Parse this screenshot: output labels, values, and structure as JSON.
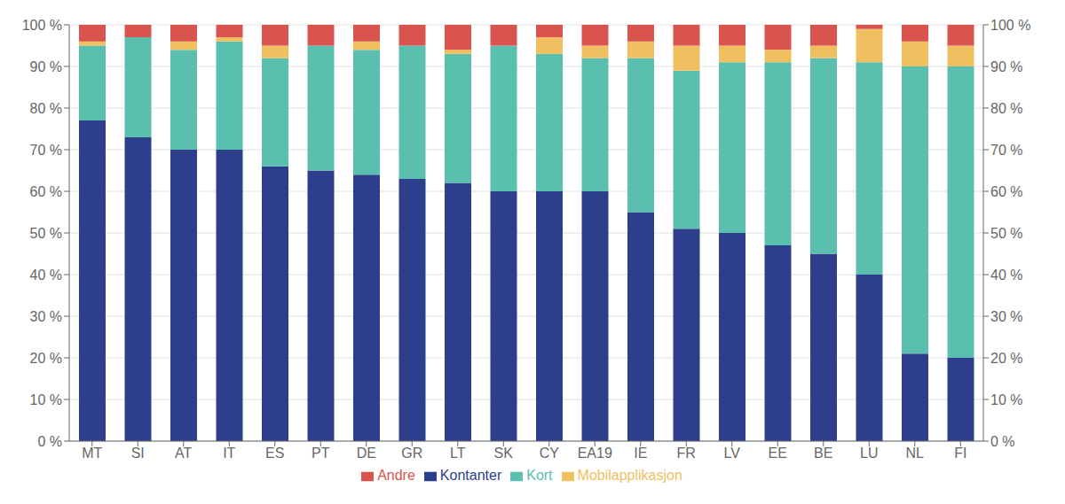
{
  "chart_data": {
    "type": "bar",
    "stacked": true,
    "categories": [
      "MT",
      "SI",
      "AT",
      "IT",
      "ES",
      "PT",
      "DE",
      "GR",
      "LT",
      "SK",
      "CY",
      "EA19",
      "IE",
      "FR",
      "LV",
      "EE",
      "BE",
      "LU",
      "NL",
      "FI"
    ],
    "series": [
      {
        "name": "Kontanter",
        "color": "#2d3f8c",
        "values": [
          77,
          73,
          70,
          70,
          66,
          65,
          64,
          63,
          62,
          60,
          60,
          60,
          55,
          51,
          50,
          47,
          45,
          40,
          21,
          20
        ]
      },
      {
        "name": "Kort",
        "color": "#5bbfb0",
        "values": [
          18,
          24,
          24,
          26,
          26,
          30,
          30,
          32,
          31,
          35,
          33,
          32,
          37,
          38,
          41,
          44,
          47,
          51,
          69,
          70
        ]
      },
      {
        "name": "Mobilapplikasjon",
        "color": "#f0c060",
        "values": [
          1,
          0,
          2,
          1,
          3,
          0,
          2,
          0,
          1,
          0,
          4,
          3,
          4,
          6,
          4,
          3,
          3,
          8,
          6,
          5
        ]
      },
      {
        "name": "Andre",
        "color": "#d9534f",
        "values": [
          4,
          3,
          4,
          3,
          5,
          5,
          4,
          5,
          6,
          5,
          3,
          5,
          4,
          5,
          5,
          6,
          5,
          1,
          4,
          5
        ]
      }
    ],
    "ylim": [
      0,
      100
    ],
    "yticks": [
      {
        "value": 0,
        "label": "0 %"
      },
      {
        "value": 10,
        "label": "10 %"
      },
      {
        "value": 20,
        "label": "20 %"
      },
      {
        "value": 30,
        "label": "30 %"
      },
      {
        "value": 40,
        "label": "40 %"
      },
      {
        "value": 50,
        "label": "50 %"
      },
      {
        "value": 60,
        "label": "60 %"
      },
      {
        "value": 70,
        "label": "70 %"
      },
      {
        "value": 80,
        "label": "80 %"
      },
      {
        "value": 90,
        "label": "90 %"
      },
      {
        "value": 100,
        "label": "100 %"
      }
    ],
    "y2lim": [
      0,
      100
    ],
    "y2ticks": [
      {
        "value": 0,
        "label": "0 %"
      },
      {
        "value": 10,
        "label": "10 %"
      },
      {
        "value": 20,
        "label": "20 %"
      },
      {
        "value": 30,
        "label": "30 %"
      },
      {
        "value": 40,
        "label": "40 %"
      },
      {
        "value": 50,
        "label": "50 %"
      },
      {
        "value": 60,
        "label": "60 %"
      },
      {
        "value": 70,
        "label": "70 %"
      },
      {
        "value": 80,
        "label": "80 %"
      },
      {
        "value": 90,
        "label": "90 %"
      },
      {
        "value": 100,
        "label": "100 %"
      }
    ],
    "grid": true,
    "legend": "bottom"
  }
}
